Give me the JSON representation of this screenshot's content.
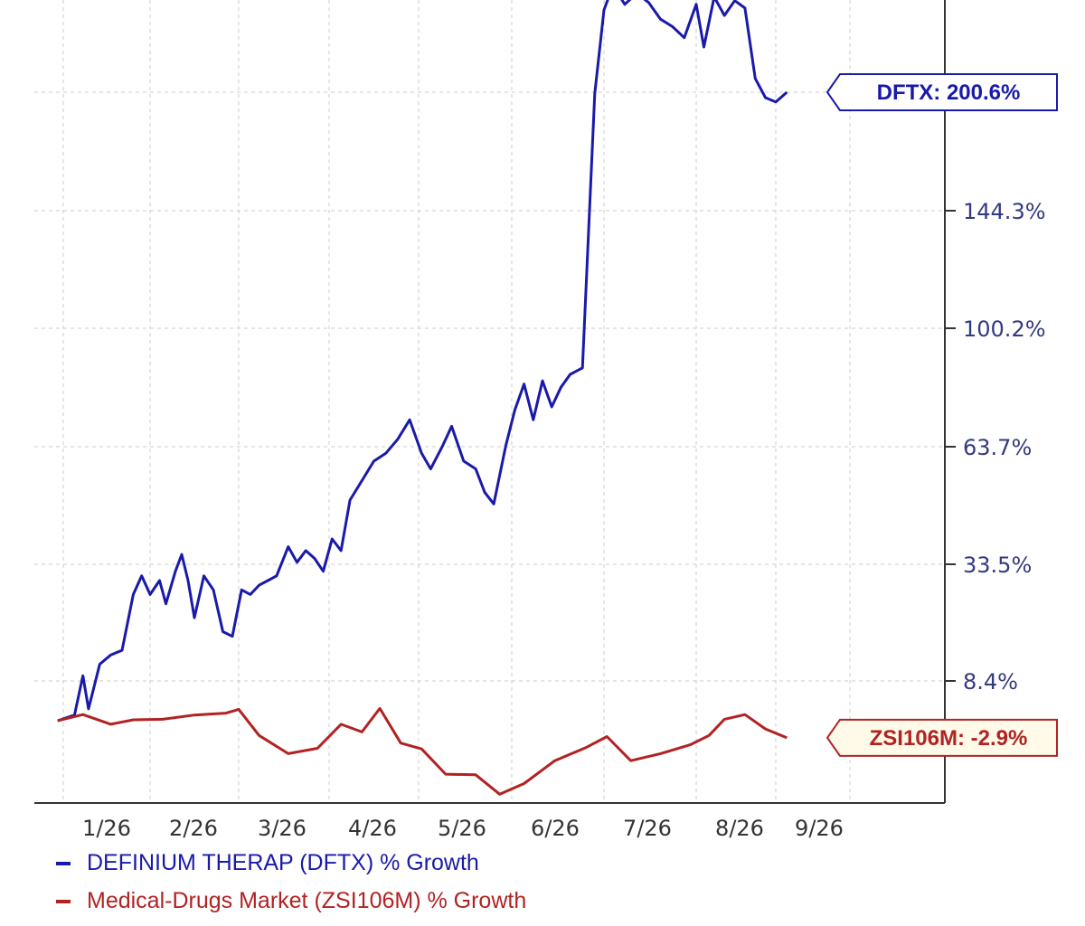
{
  "chart_data": {
    "type": "line",
    "title": "",
    "xlabel": "",
    "ylabel": "",
    "y_scale": "log-like (growth %)",
    "y_ticks": [
      {
        "value": 8.4,
        "label": "8.4%"
      },
      {
        "value": 33.5,
        "label": "33.5%"
      },
      {
        "value": 63.7,
        "label": "63.7%"
      },
      {
        "value": 100.2,
        "label": "100.2%"
      },
      {
        "value": 144.3,
        "label": "144.3%"
      }
    ],
    "x_ticks": [
      "1/26",
      "2/26",
      "3/26",
      "4/26",
      "5/26",
      "6/26",
      "7/26",
      "8/26",
      "9/26"
    ],
    "grid": true,
    "legend_position": "bottom-left",
    "series": [
      {
        "name": "DEFINIUM THERAP (DFTX) % Growth",
        "color": "#1a1aaa",
        "callout": "DFTX: 200.6%",
        "points": [
          [
            "12/30",
            0
          ],
          [
            "1/5",
            1.2
          ],
          [
            "1/8",
            9.5
          ],
          [
            "1/10",
            2.5
          ],
          [
            "1/14",
            12
          ],
          [
            "1/18",
            14
          ],
          [
            "1/22",
            15
          ],
          [
            "1/26",
            27
          ],
          [
            "1/29",
            31
          ],
          [
            "2/1",
            27
          ],
          [
            "2/4",
            30
          ],
          [
            "2/6",
            25
          ],
          [
            "2/9",
            32
          ],
          [
            "2/11",
            36
          ],
          [
            "2/13",
            30
          ],
          [
            "2/15",
            22
          ],
          [
            "2/18",
            31
          ],
          [
            "2/21",
            28
          ],
          [
            "2/24",
            19
          ],
          [
            "2/27",
            18
          ],
          [
            "3/2",
            28
          ],
          [
            "3/5",
            27
          ],
          [
            "3/8",
            29
          ],
          [
            "3/11",
            30
          ],
          [
            "3/14",
            31
          ],
          [
            "3/18",
            38
          ],
          [
            "3/21",
            34
          ],
          [
            "3/24",
            37
          ],
          [
            "3/27",
            35
          ],
          [
            "3/30",
            32
          ],
          [
            "4/2",
            40
          ],
          [
            "4/5",
            37
          ],
          [
            "4/8",
            50
          ],
          [
            "4/12",
            55
          ],
          [
            "4/16",
            60
          ],
          [
            "4/20",
            62
          ],
          [
            "4/24",
            66
          ],
          [
            "4/28",
            72
          ],
          [
            "5/2",
            62
          ],
          [
            "5/5",
            58
          ],
          [
            "5/9",
            64
          ],
          [
            "5/12",
            70
          ],
          [
            "5/16",
            60
          ],
          [
            "5/20",
            58
          ],
          [
            "5/23",
            52
          ],
          [
            "5/26",
            49
          ],
          [
            "5/30",
            64
          ],
          [
            "6/2",
            75
          ],
          [
            "6/5",
            83
          ],
          [
            "6/8",
            72
          ],
          [
            "6/11",
            84
          ],
          [
            "6/14",
            76
          ],
          [
            "6/17",
            82
          ],
          [
            "6/20",
            86
          ],
          [
            "6/24",
            88
          ],
          [
            "6/28",
            200
          ],
          [
            "7/1",
            245
          ],
          [
            "7/4",
            258
          ],
          [
            "7/8",
            248
          ],
          [
            "7/12",
            254
          ],
          [
            "7/16",
            249
          ],
          [
            "7/20",
            240
          ],
          [
            "7/24",
            236
          ],
          [
            "7/28",
            230
          ],
          [
            "8/1",
            248
          ],
          [
            "8/4",
            225
          ],
          [
            "8/8",
            252
          ],
          [
            "8/12",
            242
          ],
          [
            "8/16",
            250
          ],
          [
            "8/20",
            246
          ],
          [
            "8/24",
            208
          ],
          [
            "8/28",
            198
          ],
          [
            "9/1",
            196
          ],
          [
            "9/5",
            200.6
          ]
        ]
      },
      {
        "name": "Medical-Drugs Market (ZSI106M) % Growth",
        "color": "#b22222",
        "callout": "ZSI106M: -2.9%",
        "points": [
          [
            "12/30",
            0
          ],
          [
            "1/8",
            1.3
          ],
          [
            "1/18",
            -0.6
          ],
          [
            "1/26",
            0.2
          ],
          [
            "2/5",
            0.3
          ],
          [
            "2/15",
            1.2
          ],
          [
            "2/25",
            1.6
          ],
          [
            "3/1",
            2.4
          ],
          [
            "3/8",
            -2.5
          ],
          [
            "3/18",
            -5.6
          ],
          [
            "3/28",
            -4.7
          ],
          [
            "4/5",
            -0.6
          ],
          [
            "4/12",
            -1.9
          ],
          [
            "4/18",
            2.6
          ],
          [
            "4/25",
            -3.8
          ],
          [
            "5/2",
            -4.8
          ],
          [
            "5/10",
            -9.1
          ],
          [
            "5/20",
            -9.2
          ],
          [
            "5/28",
            -12.5
          ],
          [
            "6/5",
            -10.7
          ],
          [
            "6/15",
            -6.8
          ],
          [
            "6/25",
            -4.6
          ],
          [
            "7/2",
            -2.7
          ],
          [
            "7/10",
            -6.8
          ],
          [
            "7/20",
            -5.6
          ],
          [
            "7/30",
            -4.1
          ],
          [
            "8/6",
            -2.5
          ],
          [
            "8/12",
            0.3
          ],
          [
            "8/20",
            1.3
          ],
          [
            "8/28",
            -1.4
          ],
          [
            "9/5",
            -2.9
          ]
        ]
      }
    ]
  }
}
